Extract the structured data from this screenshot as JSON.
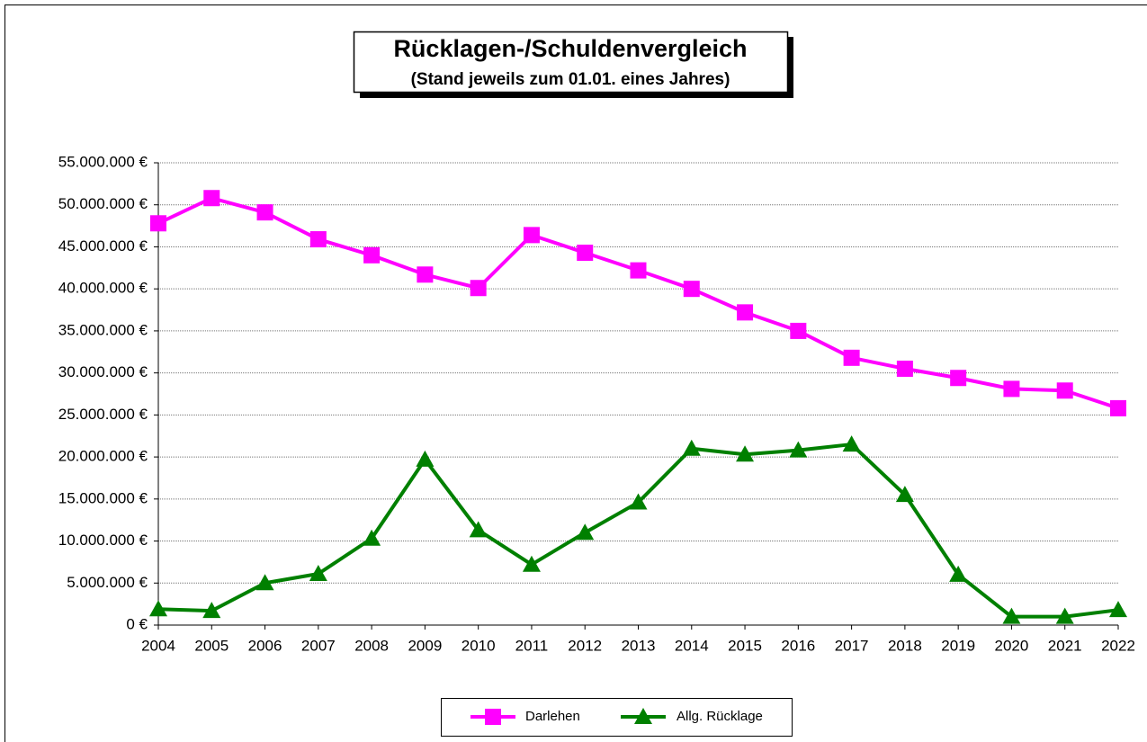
{
  "chart_data": {
    "type": "line",
    "title": "Rücklagen-/Schuldenvergleich",
    "subtitle": "(Stand jeweils zum 01.01. eines Jahres)",
    "categories": [
      "2004",
      "2005",
      "2006",
      "2007",
      "2008",
      "2009",
      "2010",
      "2011",
      "2012",
      "2013",
      "2014",
      "2015",
      "2016",
      "2017",
      "2018",
      "2019",
      "2020",
      "2021",
      "2022"
    ],
    "series": [
      {
        "name": "Darlehen",
        "color": "#ff00ff",
        "marker": "square",
        "values": [
          47800000,
          50800000,
          49100000,
          45900000,
          44000000,
          41700000,
          40100000,
          46400000,
          44300000,
          42200000,
          40000000,
          37200000,
          35000000,
          31800000,
          30500000,
          29400000,
          28100000,
          27900000,
          25800000
        ]
      },
      {
        "name": "Allg. Rücklage",
        "color": "#008000",
        "marker": "triangle",
        "values": [
          1900000,
          1700000,
          5000000,
          6100000,
          10300000,
          19700000,
          11300000,
          7200000,
          11000000,
          14600000,
          21000000,
          20300000,
          20800000,
          21500000,
          15500000,
          6000000,
          1000000,
          1000000,
          1800000
        ]
      }
    ],
    "ylim": [
      0,
      55000000
    ],
    "yticks": [
      {
        "value": 0,
        "label": "0 €"
      },
      {
        "value": 5000000,
        "label": "5.000.000 €"
      },
      {
        "value": 10000000,
        "label": "10.000.000 €"
      },
      {
        "value": 15000000,
        "label": "15.000.000 €"
      },
      {
        "value": 20000000,
        "label": "20.000.000 €"
      },
      {
        "value": 25000000,
        "label": "25.000.000 €"
      },
      {
        "value": 30000000,
        "label": "30.000.000 €"
      },
      {
        "value": 35000000,
        "label": "35.000.000 €"
      },
      {
        "value": 40000000,
        "label": "40.000.000 €"
      },
      {
        "value": 45000000,
        "label": "45.000.000 €"
      },
      {
        "value": 50000000,
        "label": "50.000.000 €"
      },
      {
        "value": 55000000,
        "label": "55.000.000 €"
      }
    ],
    "grid": true,
    "legend": "bottom"
  }
}
